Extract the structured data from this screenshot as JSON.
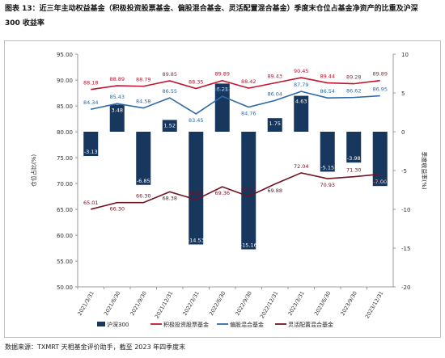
{
  "title": {
    "line1": "图表 13：近三年主动权益基金（积极投资股票基金、偏股混合基金、灵活配置混合基金）季度末仓位占基金净资产的比重及沪深",
    "line2": "300 收益率"
  },
  "source": "数据来源：TXMRT 天相基金评价助手，截至 2023 年四季度末",
  "chart_data": {
    "type": "bar+line",
    "categories": [
      "2021/3/31",
      "2021/6/30",
      "2021/9/30",
      "2021/12/31",
      "2022/3/31",
      "2022/6/30",
      "2022/9/30",
      "2022/12/31",
      "2023/3/31",
      "2023/6/30",
      "2023/9/30",
      "2023/12/31"
    ],
    "ylabel_left": "仓位占比(%)",
    "ylabel_right": "季度收益率(%)",
    "ylim_left": [
      50,
      95
    ],
    "yticks_left": [
      "95.00",
      "90.00",
      "85.00",
      "80.00",
      "75.00",
      "70.00",
      "65.00",
      "60.00",
      "55.00",
      "50.00"
    ],
    "ylim_right": [
      -20,
      10
    ],
    "yticks_right": [
      "10",
      "5",
      "0",
      "-5",
      "-10",
      "-15",
      "-20"
    ],
    "grid": false,
    "legend_position": "bottom",
    "bar_series": {
      "name": "沪深300",
      "axis": "right",
      "color": "#17375e",
      "values": [
        -3.13,
        3.48,
        -6.85,
        1.52,
        -14.53,
        6.21,
        -15.16,
        1.75,
        4.63,
        -5.15,
        -3.98,
        -7.0
      ],
      "labels": [
        "-3.13",
        "3.48",
        "-6.85",
        "1.52",
        "-14.53",
        "6.21",
        "-15.16",
        "1.75",
        "4.63",
        "-5.15",
        "-3.98",
        "-7.00"
      ]
    },
    "line_series": [
      {
        "name": "积极投资股票基金",
        "axis": "left",
        "color": "#c0142e",
        "values": [
          88.18,
          88.89,
          88.79,
          89.85,
          88.35,
          89.89,
          88.42,
          89.43,
          90.45,
          89.44,
          89.28,
          89.89
        ],
        "labels": [
          "88.18",
          "88.89",
          "88.79",
          "89.85",
          "88.35",
          "89.89",
          "88.42",
          "89.43",
          "90.45",
          "89.44",
          "89.28",
          "89.89"
        ]
      },
      {
        "name": "偏股混合基金",
        "axis": "left",
        "color": "#2e6aa8",
        "values": [
          84.34,
          85.43,
          84.58,
          86.55,
          83.45,
          86.85,
          84.76,
          86.04,
          87.79,
          86.54,
          86.62,
          86.95
        ],
        "labels": [
          "84.34",
          "85.43",
          "84.58",
          "86.55",
          "83.45",
          "86.85",
          "84.76",
          "86.04",
          "87.79",
          "86.54",
          "86.62",
          "86.95"
        ]
      },
      {
        "name": "灵活配置混合基金",
        "axis": "left",
        "color": "#6e1423",
        "values": [
          65.01,
          66.3,
          66.3,
          68.38,
          66.87,
          69.36,
          67.5,
          69.88,
          72.04,
          70.93,
          71.3,
          71.79
        ],
        "labels": [
          "65.01",
          "66.30",
          "66.30",
          "68.38",
          "66.87",
          "69.36",
          "67.50",
          "69.88",
          "72.04",
          "70.93",
          "71.30",
          "71.79"
        ]
      }
    ]
  }
}
